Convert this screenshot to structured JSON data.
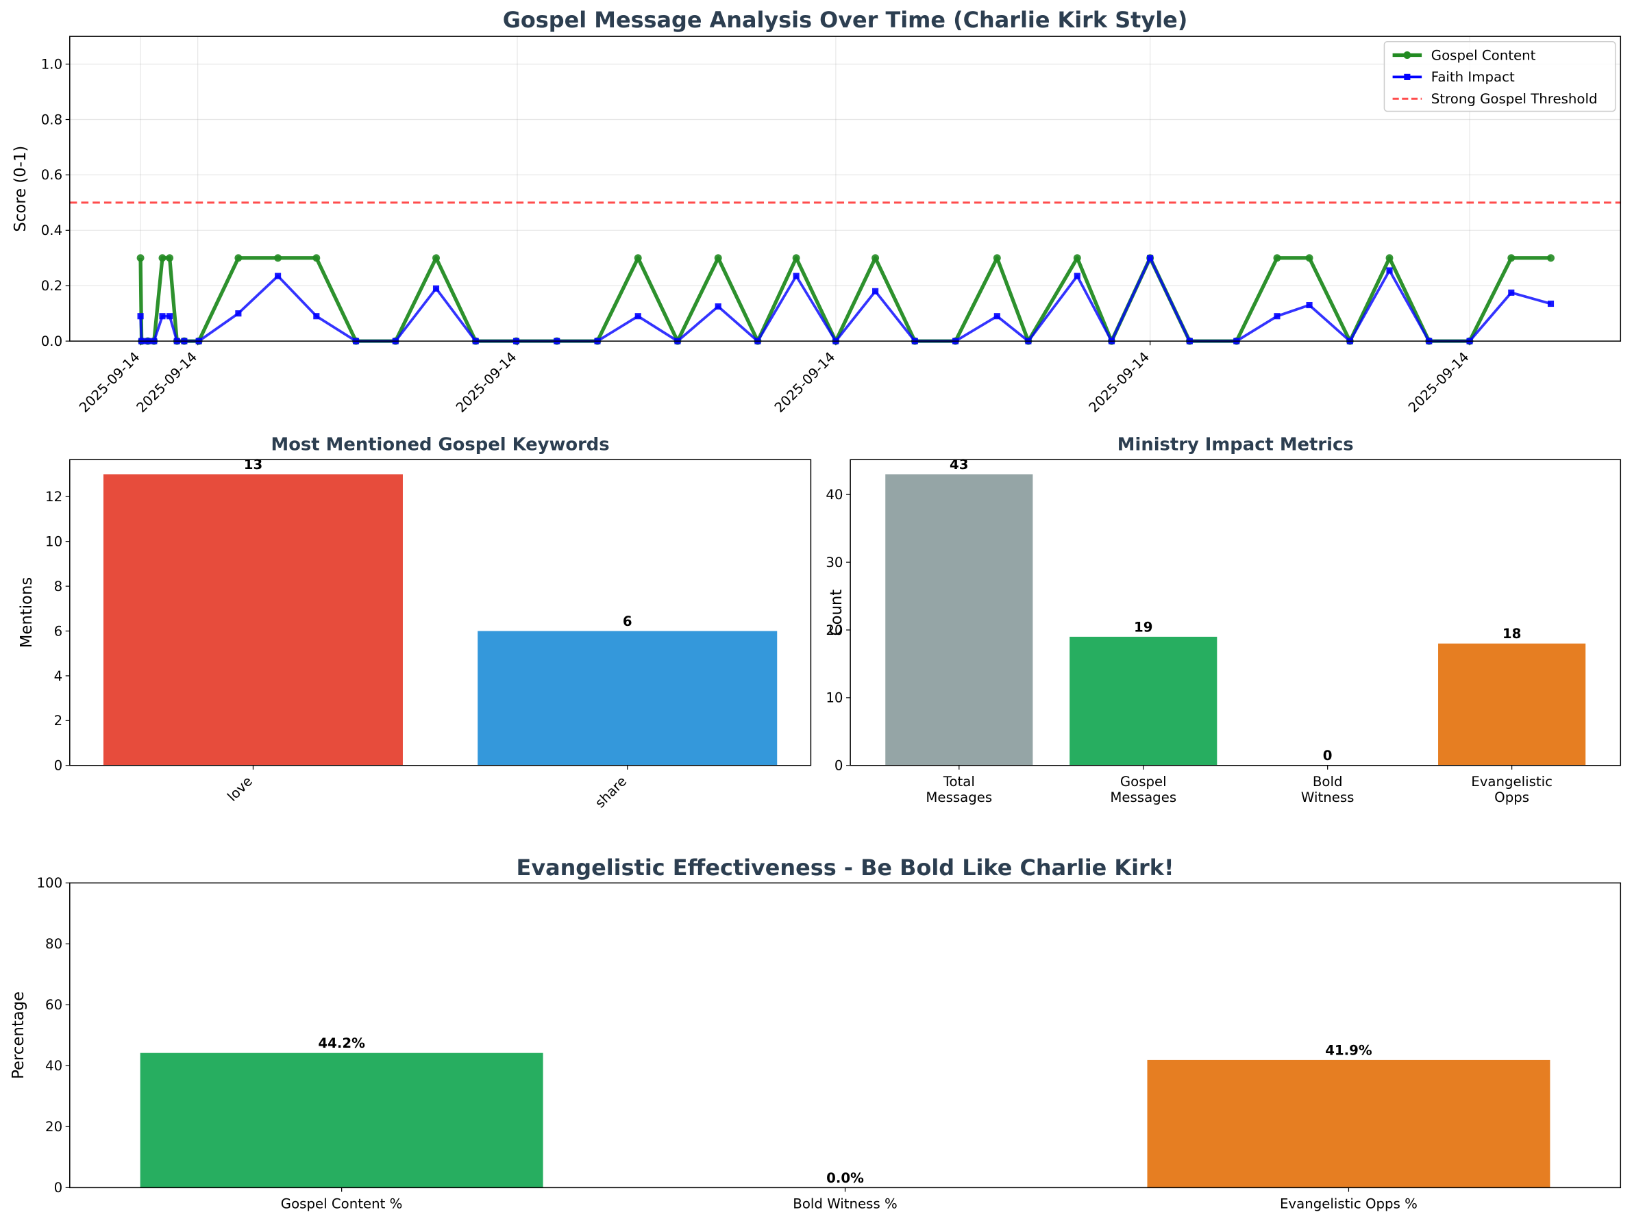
{
  "chart_data": [
    {
      "type": "line",
      "title": "Gospel Message Analysis Over Time (Charlie Kirk Style)",
      "y_label": "Score (0-1)",
      "x": [
        68,
        69,
        75,
        81,
        89,
        96,
        103,
        110,
        124,
        162,
        200,
        237,
        275,
        313,
        352,
        390,
        429,
        468,
        507,
        546,
        584,
        623,
        661,
        698,
        736,
        774,
        812,
        851,
        891,
        921,
        968,
        1001,
        1038,
        1076,
        1121,
        1160,
        1191,
        1230,
        1268,
        1306,
        1345,
        1385,
        1423
      ],
      "xlim": [
        0,
        1490
      ],
      "xticks": [
        {
          "value": 68,
          "label": "2025-09-14"
        },
        {
          "value": 123,
          "label": "2025-09-14"
        },
        {
          "value": 430,
          "label": "2025-09-14"
        },
        {
          "value": 736,
          "label": "2025-09-14"
        },
        {
          "value": 1038,
          "label": "2025-09-14"
        },
        {
          "value": 1345,
          "label": "2025-09-14"
        }
      ],
      "ylim": [
        0,
        1.1
      ],
      "yticks": [
        {
          "value": 0,
          "label": "0.0"
        },
        {
          "value": 0.2,
          "label": "0.2"
        },
        {
          "value": 0.4,
          "label": "0.4"
        },
        {
          "value": 0.6,
          "label": "0.6"
        },
        {
          "value": 0.8,
          "label": "0.8"
        },
        {
          "value": 1,
          "label": "1.0"
        }
      ],
      "grid": true,
      "legend": "upper right",
      "series": [
        {
          "name": "Gospel Content",
          "color": "#228b22",
          "marker": "circle",
          "values": [
            0.3,
            0,
            0,
            0,
            0.3,
            0.3,
            0,
            0,
            0,
            0.3,
            0.3,
            0.3,
            0,
            0,
            0.3,
            0,
            0,
            0,
            0,
            0.3,
            0,
            0.3,
            0,
            0.3,
            0,
            0.3,
            0,
            0,
            0.3,
            0,
            0.3,
            0,
            0.3,
            0,
            0,
            0.3,
            0.3,
            0,
            0.3,
            0,
            0,
            0.3,
            0.3
          ]
        },
        {
          "name": "Faith Impact",
          "color": "#0000ff",
          "marker": "square",
          "values": [
            0.09,
            0,
            0,
            0,
            0.09,
            0.09,
            0,
            0,
            0,
            0.1,
            0.235,
            0.09,
            0,
            0,
            0.19,
            0,
            0,
            0,
            0,
            0.09,
            0,
            0.125,
            0,
            0.235,
            0,
            0.18,
            0,
            0,
            0.09,
            0,
            0.235,
            0,
            0.3,
            0,
            0,
            0.09,
            0.13,
            0,
            0.255,
            0,
            0,
            0.175,
            0.135
          ]
        }
      ],
      "threshold": {
        "name": "Strong Gospel Threshold",
        "value": 0.5,
        "color": "#ff0000"
      }
    },
    {
      "type": "bar",
      "title": "Most Mentioned Gospel Keywords",
      "y_label": "Mentions",
      "categories": [
        "love",
        "share"
      ],
      "values": [
        13,
        6
      ],
      "colors": [
        "#e74c3c",
        "#3498db"
      ],
      "ylim": [
        0,
        13.65
      ],
      "yticks": [
        0,
        2,
        4,
        6,
        8,
        10,
        12
      ],
      "rotate_labels": true
    },
    {
      "type": "bar",
      "title": "Ministry Impact Metrics",
      "y_label": "Count",
      "categories": [
        "Total\nMessages",
        "Gospel\nMessages",
        "Bold\nWitness",
        "Evangelistic\nOpps"
      ],
      "values": [
        43,
        19,
        0,
        18
      ],
      "colors": [
        "#95a5a6",
        "#27ae60",
        "#e74c3c",
        "#e67e22"
      ],
      "ylim": [
        0,
        45.15
      ],
      "yticks": [
        0,
        10,
        20,
        30,
        40
      ]
    },
    {
      "type": "bar",
      "title": "Evangelistic Effectiveness - Be Bold Like Charlie Kirk!",
      "y_label": "Percentage",
      "categories": [
        "Gospel Content %",
        "Bold Witness %",
        "Evangelistic Opps %"
      ],
      "values": [
        44.2,
        0.0,
        41.9
      ],
      "value_labels": [
        "44.2%",
        "0.0%",
        "41.9%"
      ],
      "colors": [
        "#27ae60",
        "#e74c3c",
        "#e67e22"
      ],
      "ylim": [
        0,
        100
      ],
      "yticks": [
        0,
        20,
        40,
        60,
        80,
        100
      ]
    }
  ]
}
